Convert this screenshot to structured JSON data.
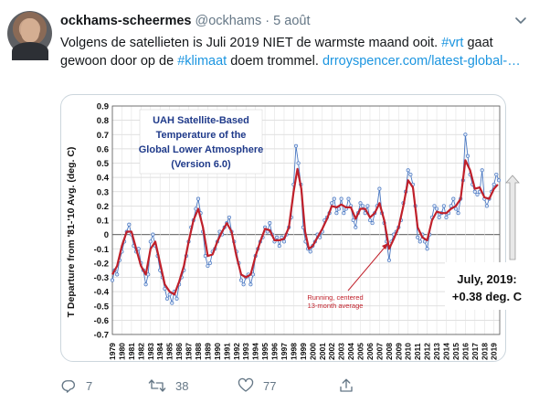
{
  "tweet": {
    "display_name": "ockhams-scheermes",
    "handle": "@ockhams",
    "separator": "·",
    "date": "5 août",
    "text_before": "Volgens de satellieten is Juli 2019 NIET de warmste maand ooit. ",
    "hashtag_1": "#vrt",
    "text_middle": " gaat gewoon door op de ",
    "hashtag_2": "#klimaat",
    "text_after": " doem trommel.  ",
    "link_text": "drroyspencer.com/latest-global-…"
  },
  "actions": {
    "reply_count": "7",
    "retweet_count": "38",
    "like_count": "77"
  },
  "icons": {
    "reply": "reply-icon",
    "retweet": "retweet-icon",
    "like": "like-icon",
    "share": "share-icon",
    "caret": "chevron-down-icon"
  },
  "chart_data": {
    "type": "line",
    "title_lines": [
      "UAH Satellite-Based",
      "Temperature of the",
      "Global Lower Atmosphere",
      "(Version 6.0)"
    ],
    "ylabel": "T Departure from '81-'10 Avg. (deg. C)",
    "ylim": [
      -0.7,
      0.9
    ],
    "yticks": [
      "0.9",
      "0.8",
      "0.7",
      "0.6",
      "0.5",
      "0.4",
      "0.3",
      "0.2",
      "0.1",
      "0",
      "-0.1",
      "-0.2",
      "-0.3",
      "-0.4",
      "-0.5",
      "-0.6",
      "-0.7"
    ],
    "xticks": [
      "1979",
      "1980",
      "1981",
      "1982",
      "1983",
      "1984",
      "1985",
      "1986",
      "1987",
      "1988",
      "1989",
      "1990",
      "1991",
      "1992",
      "1993",
      "1994",
      "1995",
      "1996",
      "1997",
      "1998",
      "1999",
      "2000",
      "2001",
      "2002",
      "2003",
      "2004",
      "2005",
      "2006",
      "2007",
      "2008",
      "2009",
      "2010",
      "2011",
      "2012",
      "2013",
      "2014",
      "2015",
      "2016",
      "2017",
      "2018",
      "2019"
    ],
    "x_range": [
      1979,
      2019.6
    ],
    "annotation_running": [
      "Running, centered",
      "13-month average"
    ],
    "annotation_july": [
      "July, 2019:",
      "+0.38 deg. C"
    ],
    "series_monthly": {
      "color": "#4a78c2",
      "points": [
        [
          1979.0,
          -0.32
        ],
        [
          1979.25,
          -0.25
        ],
        [
          1979.5,
          -0.28
        ],
        [
          1979.75,
          -0.18
        ],
        [
          1980.0,
          -0.12
        ],
        [
          1980.25,
          -0.05
        ],
        [
          1980.5,
          0.02
        ],
        [
          1980.75,
          0.07
        ],
        [
          1981.0,
          0.0
        ],
        [
          1981.25,
          -0.08
        ],
        [
          1981.5,
          -0.12
        ],
        [
          1981.75,
          -0.1
        ],
        [
          1982.0,
          -0.2
        ],
        [
          1982.25,
          -0.25
        ],
        [
          1982.5,
          -0.35
        ],
        [
          1982.75,
          -0.28
        ],
        [
          1983.0,
          -0.05
        ],
        [
          1983.25,
          0.0
        ],
        [
          1983.5,
          -0.08
        ],
        [
          1983.75,
          -0.15
        ],
        [
          1984.0,
          -0.25
        ],
        [
          1984.25,
          -0.3
        ],
        [
          1984.5,
          -0.38
        ],
        [
          1984.75,
          -0.45
        ],
        [
          1985.0,
          -0.42
        ],
        [
          1985.25,
          -0.48
        ],
        [
          1985.5,
          -0.4
        ],
        [
          1985.75,
          -0.45
        ],
        [
          1986.0,
          -0.35
        ],
        [
          1986.25,
          -0.3
        ],
        [
          1986.5,
          -0.25
        ],
        [
          1986.75,
          -0.15
        ],
        [
          1987.0,
          -0.05
        ],
        [
          1987.25,
          0.05
        ],
        [
          1987.5,
          0.1
        ],
        [
          1987.75,
          0.18
        ],
        [
          1988.0,
          0.25
        ],
        [
          1988.25,
          0.15
        ],
        [
          1988.5,
          0.02
        ],
        [
          1988.75,
          -0.15
        ],
        [
          1989.0,
          -0.22
        ],
        [
          1989.25,
          -0.2
        ],
        [
          1989.5,
          -0.12
        ],
        [
          1989.75,
          -0.1
        ],
        [
          1990.0,
          -0.05
        ],
        [
          1990.25,
          0.02
        ],
        [
          1990.5,
          0.0
        ],
        [
          1990.75,
          0.05
        ],
        [
          1991.0,
          0.08
        ],
        [
          1991.25,
          0.12
        ],
        [
          1991.5,
          0.02
        ],
        [
          1991.75,
          -0.05
        ],
        [
          1992.0,
          -0.12
        ],
        [
          1992.25,
          -0.2
        ],
        [
          1992.5,
          -0.32
        ],
        [
          1992.75,
          -0.35
        ],
        [
          1993.0,
          -0.3
        ],
        [
          1993.25,
          -0.28
        ],
        [
          1993.5,
          -0.35
        ],
        [
          1993.75,
          -0.28
        ],
        [
          1994.0,
          -0.15
        ],
        [
          1994.25,
          -0.1
        ],
        [
          1994.5,
          -0.05
        ],
        [
          1994.75,
          -0.02
        ],
        [
          1995.0,
          0.05
        ],
        [
          1995.25,
          0.02
        ],
        [
          1995.5,
          0.08
        ],
        [
          1995.75,
          0.0
        ],
        [
          1996.0,
          -0.05
        ],
        [
          1996.25,
          -0.02
        ],
        [
          1996.5,
          -0.08
        ],
        [
          1996.75,
          -0.02
        ],
        [
          1997.0,
          -0.05
        ],
        [
          1997.25,
          0.0
        ],
        [
          1997.5,
          0.05
        ],
        [
          1997.75,
          0.12
        ],
        [
          1998.0,
          0.35
        ],
        [
          1998.25,
          0.62
        ],
        [
          1998.5,
          0.5
        ],
        [
          1998.75,
          0.35
        ],
        [
          1999.0,
          0.05
        ],
        [
          1999.25,
          -0.05
        ],
        [
          1999.5,
          -0.1
        ],
        [
          1999.75,
          -0.12
        ],
        [
          2000.0,
          -0.08
        ],
        [
          2000.25,
          -0.05
        ],
        [
          2000.5,
          0.0
        ],
        [
          2000.75,
          -0.02
        ],
        [
          2001.0,
          0.02
        ],
        [
          2001.25,
          0.1
        ],
        [
          2001.5,
          0.12
        ],
        [
          2001.75,
          0.15
        ],
        [
          2002.0,
          0.22
        ],
        [
          2002.25,
          0.25
        ],
        [
          2002.5,
          0.15
        ],
        [
          2002.75,
          0.18
        ],
        [
          2003.0,
          0.25
        ],
        [
          2003.25,
          0.15
        ],
        [
          2003.5,
          0.18
        ],
        [
          2003.75,
          0.25
        ],
        [
          2004.0,
          0.2
        ],
        [
          2004.25,
          0.1
        ],
        [
          2004.5,
          0.05
        ],
        [
          2004.75,
          0.15
        ],
        [
          2005.0,
          0.22
        ],
        [
          2005.25,
          0.2
        ],
        [
          2005.5,
          0.15
        ],
        [
          2005.75,
          0.2
        ],
        [
          2006.0,
          0.1
        ],
        [
          2006.25,
          0.08
        ],
        [
          2006.5,
          0.15
        ],
        [
          2006.75,
          0.2
        ],
        [
          2007.0,
          0.32
        ],
        [
          2007.25,
          0.15
        ],
        [
          2007.5,
          0.08
        ],
        [
          2007.75,
          -0.05
        ],
        [
          2008.0,
          -0.18
        ],
        [
          2008.25,
          -0.05
        ],
        [
          2008.5,
          0.0
        ],
        [
          2008.75,
          0.02
        ],
        [
          2009.0,
          0.05
        ],
        [
          2009.25,
          0.1
        ],
        [
          2009.5,
          0.22
        ],
        [
          2009.75,
          0.3
        ],
        [
          2010.0,
          0.45
        ],
        [
          2010.25,
          0.42
        ],
        [
          2010.5,
          0.35
        ],
        [
          2010.75,
          0.2
        ],
        [
          2011.0,
          -0.02
        ],
        [
          2011.25,
          -0.05
        ],
        [
          2011.5,
          0.0
        ],
        [
          2011.75,
          -0.05
        ],
        [
          2012.0,
          -0.1
        ],
        [
          2012.25,
          0.0
        ],
        [
          2012.5,
          0.12
        ],
        [
          2012.75,
          0.2
        ],
        [
          2013.0,
          0.18
        ],
        [
          2013.25,
          0.12
        ],
        [
          2013.5,
          0.15
        ],
        [
          2013.75,
          0.2
        ],
        [
          2014.0,
          0.12
        ],
        [
          2014.25,
          0.15
        ],
        [
          2014.5,
          0.2
        ],
        [
          2014.75,
          0.25
        ],
        [
          2015.0,
          0.18
        ],
        [
          2015.25,
          0.15
        ],
        [
          2015.5,
          0.25
        ],
        [
          2015.75,
          0.38
        ],
        [
          2016.0,
          0.7
        ],
        [
          2016.25,
          0.55
        ],
        [
          2016.5,
          0.42
        ],
        [
          2016.75,
          0.35
        ],
        [
          2017.0,
          0.3
        ],
        [
          2017.25,
          0.28
        ],
        [
          2017.5,
          0.3
        ],
        [
          2017.75,
          0.45
        ],
        [
          2018.0,
          0.25
        ],
        [
          2018.25,
          0.2
        ],
        [
          2018.5,
          0.25
        ],
        [
          2018.75,
          0.3
        ],
        [
          2019.0,
          0.35
        ],
        [
          2019.25,
          0.42
        ],
        [
          2019.5,
          0.38
        ]
      ]
    },
    "series_running": {
      "color": "#c0202a",
      "points": [
        [
          1979.0,
          -0.28
        ],
        [
          1979.5,
          -0.22
        ],
        [
          1980.0,
          -0.08
        ],
        [
          1980.5,
          0.02
        ],
        [
          1981.0,
          0.02
        ],
        [
          1981.5,
          -0.1
        ],
        [
          1982.0,
          -0.22
        ],
        [
          1982.5,
          -0.28
        ],
        [
          1983.0,
          -0.1
        ],
        [
          1983.5,
          -0.05
        ],
        [
          1984.0,
          -0.2
        ],
        [
          1984.5,
          -0.35
        ],
        [
          1985.0,
          -0.4
        ],
        [
          1985.5,
          -0.42
        ],
        [
          1986.0,
          -0.33
        ],
        [
          1986.5,
          -0.22
        ],
        [
          1987.0,
          -0.05
        ],
        [
          1987.5,
          0.1
        ],
        [
          1988.0,
          0.18
        ],
        [
          1988.5,
          0.05
        ],
        [
          1989.0,
          -0.15
        ],
        [
          1989.5,
          -0.14
        ],
        [
          1990.0,
          -0.05
        ],
        [
          1990.5,
          0.02
        ],
        [
          1991.0,
          0.08
        ],
        [
          1991.5,
          0.02
        ],
        [
          1992.0,
          -0.15
        ],
        [
          1992.5,
          -0.28
        ],
        [
          1993.0,
          -0.3
        ],
        [
          1993.5,
          -0.28
        ],
        [
          1994.0,
          -0.15
        ],
        [
          1994.5,
          -0.05
        ],
        [
          1995.0,
          0.04
        ],
        [
          1995.5,
          0.03
        ],
        [
          1996.0,
          -0.04
        ],
        [
          1996.5,
          -0.04
        ],
        [
          1997.0,
          -0.03
        ],
        [
          1997.5,
          0.05
        ],
        [
          1998.0,
          0.3
        ],
        [
          1998.4,
          0.46
        ],
        [
          1998.8,
          0.32
        ],
        [
          1999.2,
          0.02
        ],
        [
          1999.6,
          -0.1
        ],
        [
          2000.0,
          -0.08
        ],
        [
          2000.5,
          -0.02
        ],
        [
          2001.0,
          0.04
        ],
        [
          2001.5,
          0.11
        ],
        [
          2002.0,
          0.2
        ],
        [
          2002.5,
          0.19
        ],
        [
          2003.0,
          0.21
        ],
        [
          2003.5,
          0.19
        ],
        [
          2004.0,
          0.19
        ],
        [
          2004.5,
          0.11
        ],
        [
          2005.0,
          0.18
        ],
        [
          2005.5,
          0.18
        ],
        [
          2006.0,
          0.12
        ],
        [
          2006.5,
          0.15
        ],
        [
          2007.0,
          0.22
        ],
        [
          2007.5,
          0.1
        ],
        [
          2008.0,
          -0.1
        ],
        [
          2008.5,
          -0.03
        ],
        [
          2009.0,
          0.05
        ],
        [
          2009.5,
          0.2
        ],
        [
          2010.0,
          0.38
        ],
        [
          2010.5,
          0.33
        ],
        [
          2011.0,
          0.05
        ],
        [
          2011.5,
          -0.02
        ],
        [
          2012.0,
          -0.04
        ],
        [
          2012.5,
          0.1
        ],
        [
          2013.0,
          0.16
        ],
        [
          2013.5,
          0.15
        ],
        [
          2014.0,
          0.15
        ],
        [
          2014.5,
          0.18
        ],
        [
          2015.0,
          0.2
        ],
        [
          2015.5,
          0.25
        ],
        [
          2016.0,
          0.52
        ],
        [
          2016.5,
          0.45
        ],
        [
          2017.0,
          0.32
        ],
        [
          2017.5,
          0.33
        ],
        [
          2018.0,
          0.26
        ],
        [
          2018.5,
          0.25
        ],
        [
          2019.0,
          0.32
        ],
        [
          2019.4,
          0.35
        ]
      ]
    }
  }
}
